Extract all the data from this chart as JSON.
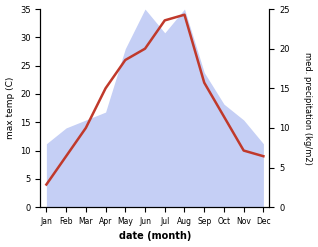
{
  "months": [
    "Jan",
    "Feb",
    "Mar",
    "Apr",
    "May",
    "Jun",
    "Jul",
    "Aug",
    "Sep",
    "Oct",
    "Nov",
    "Dec"
  ],
  "temperature": [
    4,
    9,
    14,
    21,
    26,
    28,
    33,
    34,
    22,
    16,
    10,
    9
  ],
  "precipitation": [
    8,
    10,
    11,
    12,
    20,
    25,
    22,
    25,
    17,
    13,
    11,
    8
  ],
  "temp_color": "#c0392b",
  "precip_color": "#c5cff5",
  "temp_ylim": [
    0,
    35
  ],
  "precip_ylim": [
    0,
    25
  ],
  "temp_yticks": [
    0,
    5,
    10,
    15,
    20,
    25,
    30,
    35
  ],
  "precip_yticks": [
    0,
    5,
    10,
    15,
    20,
    25
  ],
  "xlabel": "date (month)",
  "ylabel_left": "max temp (C)",
  "ylabel_right": "med. precipitation (kg/m2)",
  "background_color": "#ffffff"
}
